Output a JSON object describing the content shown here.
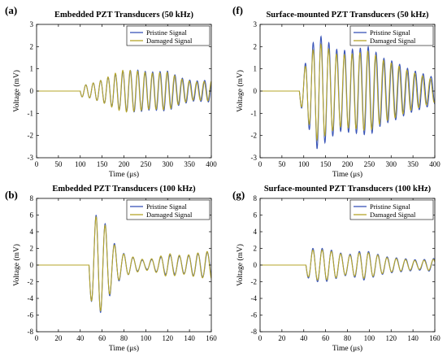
{
  "colors": {
    "pristine": "#3a55b8",
    "damaged": "#b5a52a",
    "axis": "#000000",
    "background": "#ffffff"
  },
  "chart_data": [
    {
      "type": "line",
      "panel_label": "(a)",
      "title": "Embedded PZT Transducers (50 kHz)",
      "xlabel": "Time (μs)",
      "ylabel": "Voltage (mV)",
      "xlim": [
        0,
        400
      ],
      "ylim": [
        -3,
        3
      ],
      "xticks": [
        0,
        50,
        100,
        150,
        200,
        250,
        300,
        350,
        400
      ],
      "yticks": [
        -3,
        -2,
        -1,
        0,
        1,
        2,
        3
      ],
      "grid": false,
      "legend_position": "top-right",
      "series": [
        {
          "name": "Pristine Signal",
          "onset": 100,
          "period": 17,
          "envelope": [
            [
              100,
              0.25
            ],
            [
              120,
              0.3
            ],
            [
              150,
              0.5
            ],
            [
              180,
              0.75
            ],
            [
              200,
              0.9
            ],
            [
              230,
              0.95
            ],
            [
              260,
              0.85
            ],
            [
              300,
              0.9
            ],
            [
              330,
              0.6
            ],
            [
              360,
              0.45
            ],
            [
              400,
              0.5
            ]
          ],
          "phase": 0
        },
        {
          "name": "Damaged Signal",
          "onset": 100,
          "period": 17,
          "envelope": [
            [
              100,
              0.25
            ],
            [
              120,
              0.3
            ],
            [
              150,
              0.5
            ],
            [
              180,
              0.8
            ],
            [
              200,
              0.95
            ],
            [
              230,
              0.9
            ],
            [
              260,
              0.8
            ],
            [
              300,
              0.85
            ],
            [
              330,
              0.55
            ],
            [
              360,
              0.4
            ],
            [
              400,
              0.45
            ]
          ],
          "phase": 0.25
        }
      ]
    },
    {
      "type": "line",
      "panel_label": "(f)",
      "title": "Surface-mounted PZT Transducers (50 kHz)",
      "xlabel": "Time (μs)",
      "ylabel": "Voltage (mV)",
      "xlim": [
        0,
        400
      ],
      "ylim": [
        -3,
        3
      ],
      "xticks": [
        0,
        50,
        100,
        150,
        200,
        250,
        300,
        350,
        400
      ],
      "yticks": [
        -3,
        -2,
        -1,
        0,
        1,
        2,
        3
      ],
      "grid": false,
      "legend_position": "top-right",
      "series": [
        {
          "name": "Pristine Signal",
          "onset": 90,
          "period": 18,
          "envelope": [
            [
              90,
              0.5
            ],
            [
              110,
              1.6
            ],
            [
              130,
              2.6
            ],
            [
              150,
              2.3
            ],
            [
              180,
              1.8
            ],
            [
              220,
              1.9
            ],
            [
              250,
              2.0
            ],
            [
              280,
              1.5
            ],
            [
              310,
              1.3
            ],
            [
              340,
              1.0
            ],
            [
              370,
              0.8
            ],
            [
              400,
              0.6
            ]
          ],
          "phase": 0
        },
        {
          "name": "Damaged Signal",
          "onset": 90,
          "period": 18,
          "envelope": [
            [
              90,
              0.5
            ],
            [
              110,
              1.4
            ],
            [
              130,
              2.2
            ],
            [
              150,
              2.0
            ],
            [
              180,
              1.6
            ],
            [
              220,
              1.7
            ],
            [
              250,
              1.8
            ],
            [
              280,
              1.4
            ],
            [
              310,
              1.2
            ],
            [
              340,
              0.9
            ],
            [
              370,
              0.7
            ],
            [
              400,
              0.5
            ]
          ],
          "phase": 0.3
        }
      ]
    },
    {
      "type": "line",
      "panel_label": "(b)",
      "title": "Embedded PZT Transducers (100 kHz)",
      "xlabel": "Time (μs)",
      "ylabel": "Voltage (mV)",
      "xlim": [
        0,
        160
      ],
      "ylim": [
        -8,
        8
      ],
      "xticks": [
        0,
        20,
        40,
        60,
        80,
        100,
        120,
        140,
        160
      ],
      "yticks": [
        -8,
        -6,
        -4,
        -2,
        0,
        2,
        4,
        6,
        8
      ],
      "grid": false,
      "legend_position": "top-right",
      "series": [
        {
          "name": "Pristine Signal",
          "onset": 48,
          "period": 8.5,
          "envelope": [
            [
              48,
              3.5
            ],
            [
              55,
              6.2
            ],
            [
              62,
              5.2
            ],
            [
              70,
              2.8
            ],
            [
              78,
              1.5
            ],
            [
              90,
              0.8
            ],
            [
              100,
              0.5
            ],
            [
              110,
              0.8
            ],
            [
              120,
              1.2
            ],
            [
              135,
              1.0
            ],
            [
              145,
              1.3
            ],
            [
              160,
              1.6
            ]
          ],
          "phase": 0
        },
        {
          "name": "Damaged Signal",
          "onset": 48,
          "period": 8.5,
          "envelope": [
            [
              48,
              3.5
            ],
            [
              55,
              6.0
            ],
            [
              62,
              5.0
            ],
            [
              70,
              2.6
            ],
            [
              78,
              1.4
            ],
            [
              90,
              0.9
            ],
            [
              100,
              0.6
            ],
            [
              110,
              0.9
            ],
            [
              120,
              1.4
            ],
            [
              135,
              1.1
            ],
            [
              145,
              1.4
            ],
            [
              160,
              1.7
            ]
          ],
          "phase": 0.2
        }
      ]
    },
    {
      "type": "line",
      "panel_label": "(g)",
      "title": "Surface-mounted PZT Transducers (100 kHz)",
      "xlabel": "Time (μs)",
      "ylabel": "Voltage (mV)",
      "xlim": [
        0,
        160
      ],
      "ylim": [
        -8,
        8
      ],
      "xticks": [
        0,
        20,
        40,
        60,
        80,
        100,
        120,
        140,
        160
      ],
      "yticks": [
        -8,
        -6,
        -4,
        -2,
        0,
        2,
        4,
        6,
        8
      ],
      "grid": false,
      "legend_position": "top-right",
      "series": [
        {
          "name": "Pristine Signal",
          "onset": 42,
          "period": 8.5,
          "envelope": [
            [
              42,
              1.3
            ],
            [
              48,
              2.0
            ],
            [
              60,
              2.0
            ],
            [
              70,
              1.6
            ],
            [
              80,
              1.2
            ],
            [
              95,
              1.8
            ],
            [
              105,
              1.4
            ],
            [
              115,
              1.0
            ],
            [
              130,
              0.8
            ],
            [
              145,
              0.6
            ],
            [
              160,
              0.8
            ]
          ],
          "phase": 0
        },
        {
          "name": "Damaged Signal",
          "onset": 42,
          "period": 8.5,
          "envelope": [
            [
              42,
              1.2
            ],
            [
              48,
              1.8
            ],
            [
              60,
              1.8
            ],
            [
              70,
              1.5
            ],
            [
              80,
              1.1
            ],
            [
              95,
              1.6
            ],
            [
              105,
              1.3
            ],
            [
              115,
              0.9
            ],
            [
              130,
              0.7
            ],
            [
              145,
              0.5
            ],
            [
              160,
              0.7
            ]
          ],
          "phase": 0.25
        }
      ]
    }
  ]
}
